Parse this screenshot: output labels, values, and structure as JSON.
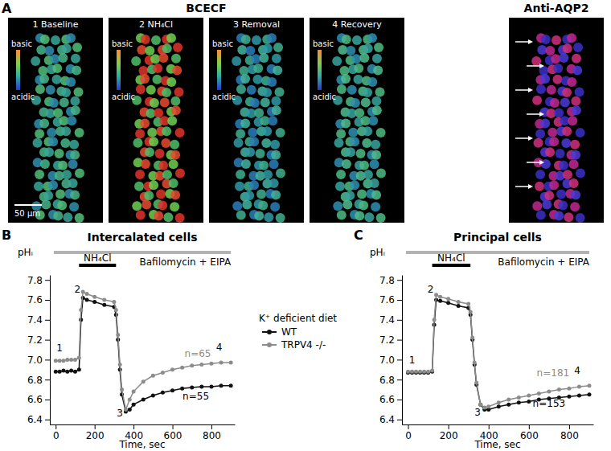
{
  "figure": {
    "panel_a": {
      "label": "A",
      "title": "BCECF",
      "images": [
        {
          "caption": "1 Baseline",
          "scale_high": "basic",
          "scale_low": "acidic",
          "scale_bar": "50 μm"
        },
        {
          "caption": "2 NH₄Cl",
          "scale_high": "basic",
          "scale_low": "acidic"
        },
        {
          "caption": "3 Removal",
          "scale_high": "basic",
          "scale_low": "acidic"
        },
        {
          "caption": "4 Recovery",
          "scale_high": "basic",
          "scale_low": "acidic"
        }
      ],
      "stain": {
        "caption": "Anti-AQP2"
      }
    }
  },
  "chart_data": [
    {
      "type": "line",
      "panel": "B",
      "title": "Intercalated cells",
      "y_label": "pHᵢ",
      "x_label": "Time, sec",
      "legend": "right",
      "legend_title": "K⁺ deficient diet",
      "marker": "circle",
      "xlim": [
        -30,
        920
      ],
      "xticks": [
        0,
        200,
        400,
        600,
        800
      ],
      "ylim": [
        6.35,
        7.85
      ],
      "yticks": [
        6.4,
        6.6,
        6.8,
        {
          "value": 7,
          "label": "7.0"
        },
        7.2,
        7.4,
        7.6,
        7.8
      ],
      "x": [
        0,
        20,
        40,
        60,
        80,
        100,
        120,
        130,
        140,
        160,
        200,
        250,
        300,
        310,
        320,
        330,
        340,
        360,
        380,
        400,
        450,
        500,
        550,
        600,
        650,
        700,
        750,
        800,
        850,
        900
      ],
      "series": [
        {
          "name": "WT",
          "color": "#111111",
          "values": [
            6.88,
            6.88,
            6.89,
            6.88,
            6.89,
            6.88,
            6.9,
            7.4,
            7.62,
            7.6,
            7.58,
            7.55,
            7.53,
            7.45,
            7.2,
            6.9,
            6.65,
            6.48,
            6.5,
            6.55,
            6.6,
            6.64,
            6.67,
            6.69,
            6.71,
            6.72,
            6.73,
            6.73,
            6.74,
            6.74
          ]
        },
        {
          "name": "TRPV4 -/-",
          "color": "#8c8c8c",
          "values": [
            6.99,
            6.99,
            6.99,
            7.0,
            7.0,
            7.0,
            7.02,
            7.5,
            7.68,
            7.66,
            7.63,
            7.6,
            7.58,
            7.5,
            7.25,
            6.95,
            6.7,
            6.5,
            6.6,
            6.68,
            6.78,
            6.84,
            6.87,
            6.9,
            6.92,
            6.94,
            6.95,
            6.96,
            6.97,
            6.97
          ]
        }
      ],
      "treatments": [
        {
          "label": "Bafilomycin + EIPA",
          "start": -10,
          "end": 900,
          "color": "#b3b3b3"
        },
        {
          "label": "NH₄Cl",
          "start": 120,
          "end": 310,
          "color": "#000000"
        }
      ],
      "annotations": [
        {
          "text": "1",
          "x": 20,
          "y": 7.08,
          "color": "#000000"
        },
        {
          "text": "2",
          "x": 112,
          "y": 7.67,
          "color": "#000000"
        },
        {
          "text": "3",
          "x": 330,
          "y": 6.43,
          "color": "#000000"
        },
        {
          "text": "4",
          "x": 840,
          "y": 7.09,
          "color": "#000000"
        },
        {
          "text": "n=65",
          "x": 730,
          "y": 7.03,
          "color": "#8c8c8c"
        },
        {
          "text": "n=55",
          "x": 720,
          "y": 6.6,
          "color": "#000000"
        }
      ]
    },
    {
      "type": "line",
      "panel": "C",
      "title": "Principal cells",
      "y_label": "pHᵢ",
      "x_label": "Time, sec",
      "marker": "circle",
      "xlim": [
        -30,
        920
      ],
      "xticks": [
        0,
        200,
        400,
        600,
        800
      ],
      "ylim": [
        6.35,
        7.85
      ],
      "yticks": [
        6.4,
        6.6,
        6.8,
        {
          "value": 7,
          "label": "7.0"
        },
        7.2,
        7.4,
        7.6,
        7.8
      ],
      "x": [
        0,
        20,
        40,
        60,
        80,
        100,
        120,
        130,
        140,
        160,
        200,
        250,
        300,
        310,
        320,
        330,
        340,
        360,
        380,
        400,
        450,
        500,
        550,
        600,
        650,
        700,
        750,
        800,
        850,
        900
      ],
      "series": [
        {
          "color": "#111111",
          "values": [
            6.87,
            6.87,
            6.87,
            6.87,
            6.87,
            6.87,
            6.88,
            7.35,
            7.6,
            7.59,
            7.57,
            7.54,
            7.52,
            7.45,
            7.2,
            6.95,
            6.75,
            6.55,
            6.5,
            6.5,
            6.53,
            6.55,
            6.57,
            6.58,
            6.6,
            6.61,
            6.62,
            6.63,
            6.64,
            6.65
          ]
        },
        {
          "color": "#8c8c8c",
          "values": [
            6.88,
            6.88,
            6.88,
            6.88,
            6.88,
            6.88,
            6.89,
            7.4,
            7.65,
            7.63,
            7.61,
            7.58,
            7.56,
            7.48,
            7.22,
            6.97,
            6.77,
            6.55,
            6.52,
            6.53,
            6.57,
            6.6,
            6.62,
            6.64,
            6.66,
            6.68,
            6.7,
            6.71,
            6.73,
            6.74
          ]
        }
      ],
      "treatments": [
        {
          "label": "Bafilomycin + EIPA",
          "start": -10,
          "end": 900,
          "color": "#b3b3b3"
        },
        {
          "label": "NH₄Cl",
          "start": 120,
          "end": 310,
          "color": "#000000"
        }
      ],
      "annotations": [
        {
          "text": "1",
          "x": 20,
          "y": 6.96,
          "color": "#000000"
        },
        {
          "text": "2",
          "x": 112,
          "y": 7.67,
          "color": "#000000"
        },
        {
          "text": "3",
          "x": 345,
          "y": 6.44,
          "color": "#000000"
        },
        {
          "text": "4",
          "x": 840,
          "y": 6.86,
          "color": "#000000"
        },
        {
          "text": "n=181",
          "x": 720,
          "y": 6.83,
          "color": "#8c8c8c"
        },
        {
          "text": "n=153",
          "x": 700,
          "y": 6.53,
          "color": "#000000"
        }
      ]
    }
  ]
}
